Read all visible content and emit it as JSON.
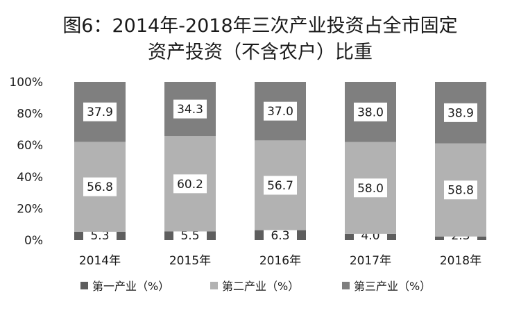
{
  "chart_data": {
    "type": "bar",
    "stacked": true,
    "percent": true,
    "title": [
      "图6：2014年-2018年三次产业投资占全市固定",
      "资产投资（不含农户）比重"
    ],
    "categories": [
      "2014年",
      "2015年",
      "2016年",
      "2017年",
      "2018年"
    ],
    "series": [
      {
        "name": "第一产业（%）",
        "values": [
          5.3,
          5.5,
          6.3,
          4.0,
          2.3
        ],
        "color": "#5e5e5e"
      },
      {
        "name": "第二产业（%）",
        "values": [
          56.8,
          60.2,
          56.7,
          58.0,
          58.8
        ],
        "color": "#b2b2b2"
      },
      {
        "name": "第三产业（%）",
        "values": [
          37.9,
          34.3,
          37.0,
          38.0,
          38.9
        ],
        "color": "#7f7f7f"
      }
    ],
    "ylim": [
      0,
      100
    ],
    "yticks": [
      "0%",
      "20%",
      "40%",
      "60%",
      "80%",
      "100%"
    ],
    "xlabel": "",
    "ylabel": "",
    "grid": false,
    "legend": "bottom"
  }
}
